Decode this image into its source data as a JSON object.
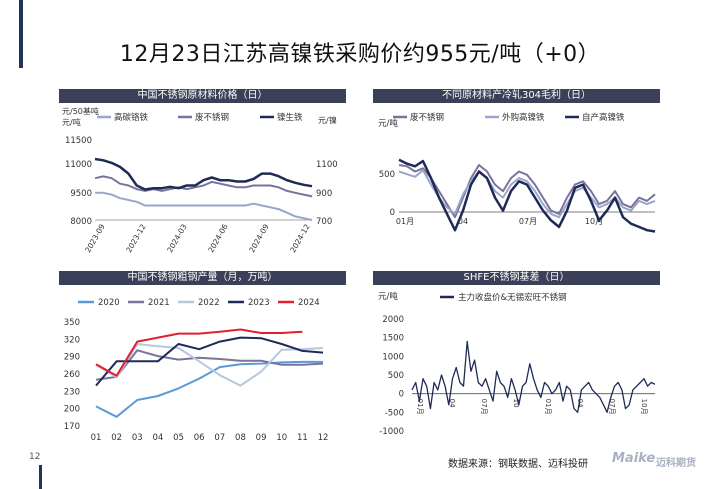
{
  "page": {
    "title": "12月23日江苏高镍铁采购价约955元/吨（+0）",
    "page_number": "12",
    "source": "数据来源：钢联数据、迈科投研",
    "logo_text": "Maike",
    "logo_cn": "迈科期货"
  },
  "chart_data": [
    {
      "id": "c1",
      "type": "line",
      "title": "中国不锈钢原材料价格（日）",
      "ylabel_left": "元/50基吨\n元/吨",
      "ylabel_right": "元/镍",
      "left_ticks": [
        "11500",
        "11000",
        "9500",
        "8000"
      ],
      "right_ticks": [
        "1100",
        "900",
        "700"
      ],
      "x_ticks": [
        "2023-09",
        "2023-12",
        "2024-03",
        "2024-06",
        "2024-09",
        "2024-12"
      ],
      "legend": [
        "高碳铬铁",
        "废不锈钢",
        "镍生铁"
      ],
      "colors": [
        "#9aa6c9",
        "#7a739b",
        "#1e2b57"
      ],
      "series": [
        {
          "name": "高碳铬铁",
          "axis": "left",
          "values": [
            9500,
            9500,
            9400,
            9200,
            9100,
            9000,
            8800,
            8800,
            8800,
            8800,
            8800,
            8800,
            8800,
            8800,
            8800,
            8800,
            8800,
            8800,
            8800,
            8900,
            8800,
            8700,
            8600,
            8400,
            8200,
            8100,
            8000
          ]
        },
        {
          "name": "废不锈钢",
          "axis": "left",
          "values": [
            10300,
            10400,
            10300,
            10000,
            9900,
            9700,
            9600,
            9700,
            9600,
            9700,
            9800,
            9700,
            9800,
            9900,
            10100,
            10000,
            9900,
            9800,
            9800,
            9900,
            9900,
            9900,
            9800,
            9600,
            9500,
            9400,
            9300
          ]
        },
        {
          "name": "镍生铁",
          "axis": "right",
          "values": [
            1160,
            1150,
            1130,
            1100,
            1050,
            960,
            930,
            940,
            940,
            950,
            940,
            960,
            960,
            1000,
            1020,
            1000,
            1000,
            990,
            990,
            1010,
            1050,
            1050,
            1030,
            1000,
            980,
            965,
            955
          ]
        }
      ]
    },
    {
      "id": "c2",
      "type": "line",
      "title": "不同原材料产冷轧304毛利（日）",
      "ylabel": "元/吨",
      "y_ticks": [
        "500",
        "0"
      ],
      "x_ticks": [
        "01月",
        "04",
        "07月",
        "10月"
      ],
      "legend": [
        "废不锈钢",
        "外购高镍铁",
        "自产高镍铁"
      ],
      "colors": [
        "#7a739b",
        "#9aa6c9",
        "#1e2b57"
      ],
      "series": [
        {
          "name": "废不锈钢",
          "values": [
            700,
            680,
            600,
            650,
            500,
            300,
            100,
            -100,
            200,
            500,
            700,
            600,
            400,
            300,
            500,
            600,
            550,
            400,
            200,
            0,
            -50,
            200,
            400,
            450,
            300,
            100,
            150,
            300,
            100,
            50,
            200,
            150,
            250
          ]
        },
        {
          "name": "外购高镍铁",
          "values": [
            600,
            560,
            520,
            620,
            400,
            200,
            50,
            -50,
            250,
            450,
            600,
            500,
            300,
            200,
            400,
            500,
            450,
            300,
            100,
            -50,
            -100,
            100,
            300,
            350,
            200,
            50,
            100,
            200,
            50,
            0,
            150,
            100,
            150
          ]
        },
        {
          "name": "自产高镍铁",
          "values": [
            780,
            720,
            680,
            760,
            500,
            200,
            -50,
            -300,
            0,
            400,
            600,
            500,
            200,
            0,
            300,
            450,
            400,
            200,
            0,
            -150,
            -250,
            0,
            350,
            400,
            150,
            -150,
            0,
            200,
            -100,
            -200,
            -250,
            -300,
            -320
          ]
        }
      ]
    },
    {
      "id": "c3",
      "type": "line",
      "title": "中国不锈钢粗钢产量（月，万吨）",
      "y_ticks": [
        "350",
        "320",
        "290",
        "260",
        "230",
        "200",
        "170"
      ],
      "ylim": [
        170,
        350
      ],
      "categories": [
        "01",
        "02",
        "03",
        "04",
        "05",
        "06",
        "07",
        "08",
        "09",
        "10",
        "11",
        "12"
      ],
      "series": [
        {
          "name": "2020",
          "color": "#5b9bd5",
          "values": [
            204,
            186,
            215,
            222,
            235,
            252,
            272,
            277,
            278,
            280,
            281,
            281
          ]
        },
        {
          "name": "2021",
          "color": "#7a739b",
          "values": [
            250,
            255,
            301,
            291,
            285,
            288,
            286,
            283,
            283,
            276,
            276,
            278
          ]
        },
        {
          "name": "2022",
          "color": "#b7c7e0",
          "values": [
            276,
            254,
            312,
            308,
            305,
            282,
            258,
            240,
            264,
            302,
            303,
            305
          ]
        },
        {
          "name": "2023",
          "color": "#1e2b57",
          "values": [
            240,
            282,
            282,
            282,
            312,
            303,
            316,
            323,
            322,
            312,
            300,
            297
          ]
        },
        {
          "name": "2024",
          "color": "#e0202e",
          "values": [
            277,
            257,
            316,
            323,
            330,
            330,
            333,
            337,
            331,
            331,
            333,
            null
          ]
        }
      ]
    },
    {
      "id": "c4",
      "type": "line",
      "title": "SHFE不锈钢基差（日）",
      "ylabel": "元/吨",
      "y_ticks": [
        "2000",
        "1500",
        "1000",
        "500",
        "0",
        "-500",
        "-1000"
      ],
      "ylim": [
        -1000,
        2000
      ],
      "x_ticks": [
        "01月",
        "04",
        "07月",
        "10",
        "01月",
        "04",
        "07月",
        "10月"
      ],
      "legend": [
        "主力收盘价&无锡宏旺不锈钢"
      ],
      "colors": [
        "#1e2b57"
      ],
      "series": [
        {
          "name": "主力收盘价&无锡宏旺不锈钢",
          "values": [
            100,
            300,
            -200,
            400,
            200,
            -400,
            300,
            100,
            500,
            200,
            -300,
            400,
            700,
            300,
            200,
            1400,
            600,
            900,
            300,
            200,
            400,
            100,
            -200,
            600,
            300,
            200,
            -100,
            400,
            100,
            -300,
            200,
            300,
            800,
            400,
            100,
            -100,
            300,
            200,
            0,
            100,
            300,
            -200,
            200,
            100,
            -400,
            -500,
            100,
            200,
            300,
            100,
            0,
            -100,
            -300,
            -500,
            -100,
            200,
            300,
            100,
            -400,
            -300,
            100,
            200,
            300,
            400,
            200,
            300,
            250
          ]
        }
      ]
    }
  ]
}
